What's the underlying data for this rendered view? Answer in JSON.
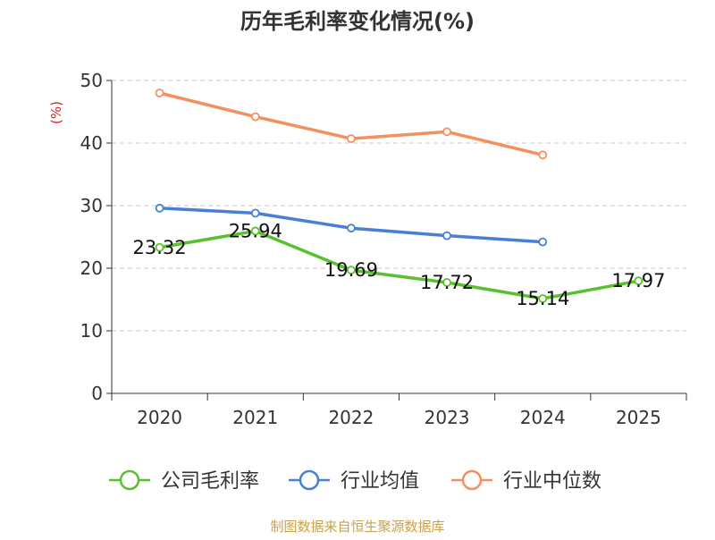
{
  "chart_data": {
    "type": "line",
    "title": "历年毛利率变化情况(%)",
    "ylabel": "(%)",
    "xlabel": "",
    "ylim": [
      0,
      50
    ],
    "yticks": [
      0,
      10,
      20,
      30,
      40,
      50
    ],
    "categories": [
      "2020",
      "2021",
      "2022",
      "2023",
      "2024",
      "2025"
    ],
    "grid": true,
    "legend_position": "bottom",
    "series": [
      {
        "name": "公司毛利率",
        "color": "#5ac12e",
        "values": [
          23.32,
          25.94,
          19.69,
          17.72,
          15.14,
          17.97
        ],
        "labels": [
          "23.32",
          "25.94",
          "19.69",
          "17.72",
          "15.14",
          "17.97"
        ]
      },
      {
        "name": "行业均值",
        "color": "#4a7fd6",
        "values": [
          29.6,
          28.8,
          26.4,
          25.2,
          24.2,
          null
        ]
      },
      {
        "name": "行业中位数",
        "color": "#f39060",
        "values": [
          48.0,
          44.2,
          40.7,
          41.8,
          38.1,
          null
        ]
      }
    ],
    "source": "制图数据来自恒生聚源数据库",
    "source_color": "#c8a24a",
    "ylabel_color": "#e02020"
  }
}
